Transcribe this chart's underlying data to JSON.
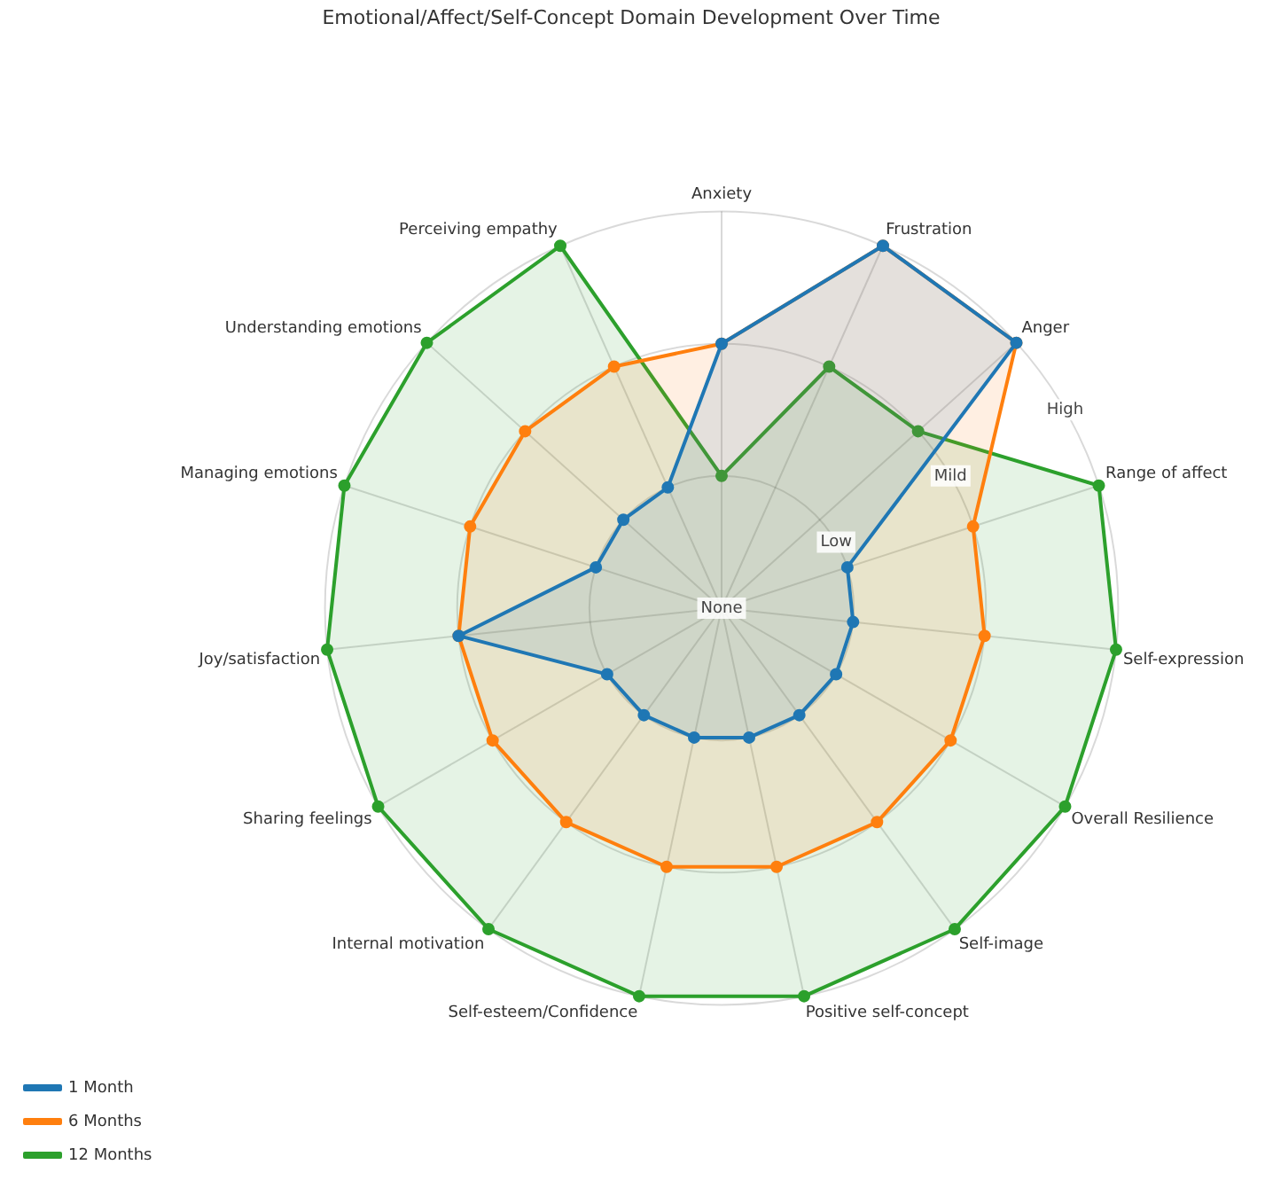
{
  "chart_data": {
    "type": "radar",
    "title": "Emotional/Affect/Self-Concept Domain Development Over Time",
    "categories": [
      "Anxiety",
      "Frustration",
      "Anger",
      "Range of affect",
      "Self-expression",
      "Overall Resilience",
      "Self-image",
      "Positive self-concept",
      "Self-esteem/Confidence",
      "Internal motivation",
      "Sharing feelings",
      "Joy/satisfaction",
      "Managing emotions",
      "Understanding emotions",
      "Perceiving empathy"
    ],
    "series": [
      {
        "name": "1 Month",
        "color": "#1f77b4",
        "values": [
          2,
          3,
          3,
          1,
          1,
          1,
          1,
          1,
          1,
          1,
          1,
          2,
          1,
          1,
          1
        ]
      },
      {
        "name": "6 Months",
        "color": "#ff7f0e",
        "values": [
          2,
          3,
          3,
          2,
          2,
          2,
          2,
          2,
          2,
          2,
          2,
          2,
          2,
          2,
          2
        ]
      },
      {
        "name": "12 Months",
        "color": "#2ca02c",
        "values": [
          1,
          2,
          2,
          3,
          3,
          3,
          3,
          3,
          3,
          3,
          3,
          3,
          3,
          3,
          3
        ]
      }
    ],
    "ylim": [
      0,
      3
    ],
    "yticks": [
      {
        "value": 0,
        "label": "None"
      },
      {
        "value": 1,
        "label": "Low"
      },
      {
        "value": 2,
        "label": "Mild"
      },
      {
        "value": 3,
        "label": "High"
      }
    ],
    "grid": true,
    "legend": "bottom left",
    "marker": "circle",
    "line_style": "solid"
  }
}
